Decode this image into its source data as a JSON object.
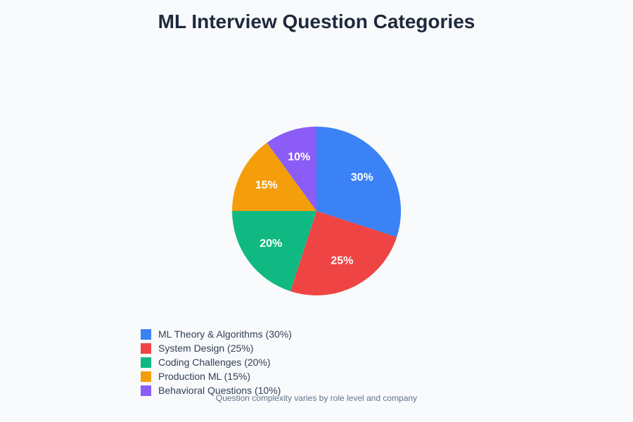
{
  "chart_data": {
    "type": "pie",
    "title": "ML Interview Question Categories",
    "footnote": "Question complexity varies by role level and company",
    "slices": [
      {
        "label": "ML Theory & Algorithms (30%)",
        "value": 30,
        "data_label": "30%",
        "color": "#3b82f6"
      },
      {
        "label": "System Design (25%)",
        "value": 25,
        "data_label": "25%",
        "color": "#ef4444"
      },
      {
        "label": "Coding Challenges (20%)",
        "value": 20,
        "data_label": "20%",
        "color": "#10b981"
      },
      {
        "label": "Production ML (15%)",
        "value": 15,
        "data_label": "15%",
        "color": "#f59e0b"
      },
      {
        "label": "Behavioral Questions (10%)",
        "value": 10,
        "data_label": "10%",
        "color": "#8b5cf6"
      }
    ],
    "legend_position": "bottom-left"
  }
}
